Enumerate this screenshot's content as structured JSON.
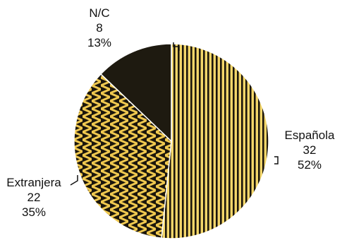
{
  "chart_data": {
    "type": "pie",
    "slices": [
      {
        "label": "Española",
        "value": 32,
        "percent": "52%",
        "color": "#f3d66a",
        "pattern": "vertical-stripes"
      },
      {
        "label": "Extranjera",
        "value": 22,
        "percent": "35%",
        "color": "#e9c24a",
        "pattern": "zigzag"
      },
      {
        "label": "N/C",
        "value": 8,
        "percent": "13%",
        "color": "#1e1a10",
        "pattern": "solid"
      }
    ],
    "start_angle_deg": 0,
    "direction": "clockwise",
    "legend": "none",
    "data_labels": "outside with leader lines"
  }
}
